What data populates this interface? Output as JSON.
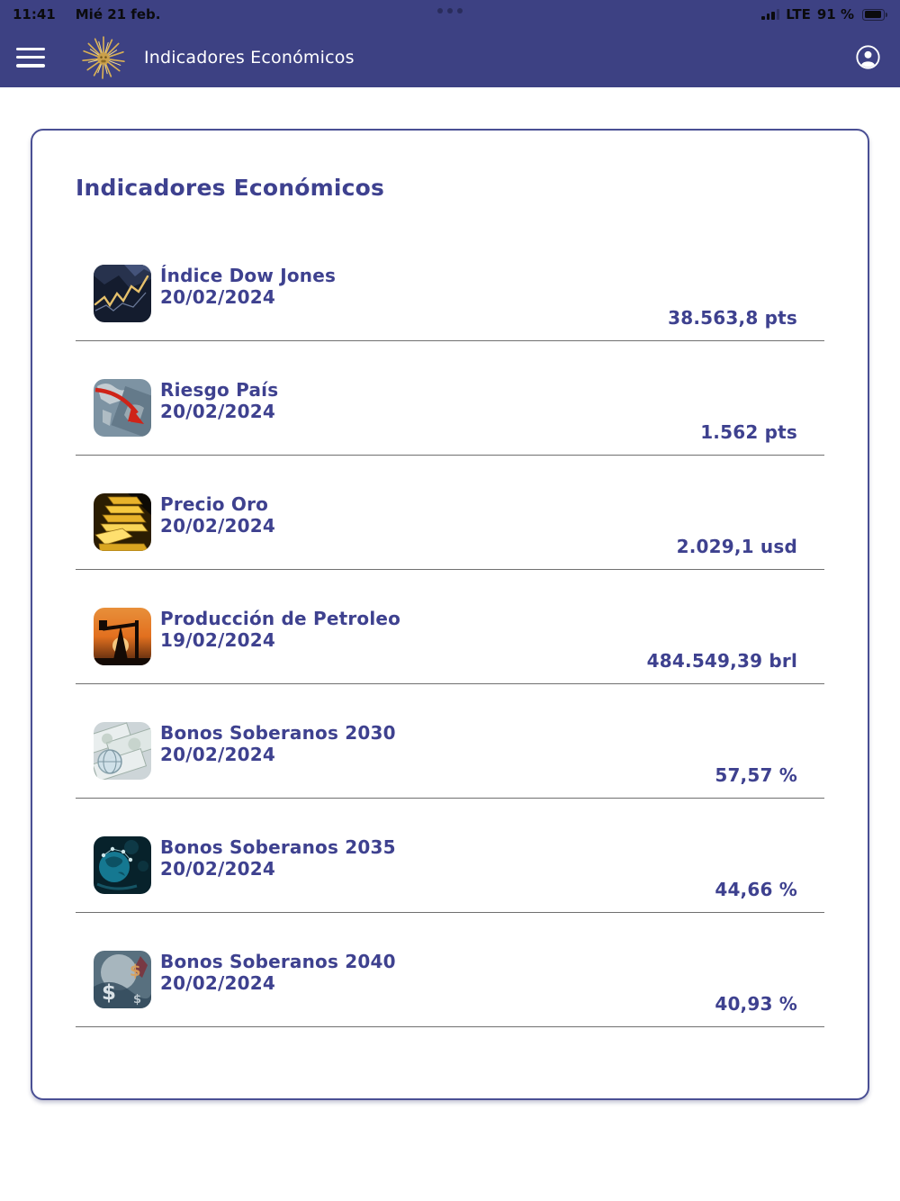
{
  "status_bar": {
    "time": "11:41",
    "date": "Mié 21 feb.",
    "network": "LTE",
    "battery_label": "91 %",
    "battery_percent": 91,
    "signal_bars_filled": 3
  },
  "header": {
    "title": "Indicadores Económicos",
    "logo": "golden-sun-mask-logo",
    "menu_icon": "hamburger-menu-icon",
    "account_icon": "account-icon"
  },
  "card": {
    "title": "Indicadores Económicos",
    "items": [
      {
        "name": "Índice Dow Jones",
        "date": "20/02/2024",
        "value": "38.563,8 pts",
        "thumb": "stock-chart"
      },
      {
        "name": "Riesgo País",
        "date": "20/02/2024",
        "value": "1.562 pts",
        "thumb": "world-map-arrow"
      },
      {
        "name": "Precio Oro",
        "date": "20/02/2024",
        "value": "2.029,1 usd",
        "thumb": "gold-bars"
      },
      {
        "name": "Producción de Petroleo",
        "date": "19/02/2024",
        "value": "484.549,39 brl",
        "thumb": "oil-pump"
      },
      {
        "name": "Bonos Soberanos 2030",
        "date": "20/02/2024",
        "value": "57,57 %",
        "thumb": "dollar-bills-globe"
      },
      {
        "name": "Bonos Soberanos 2035",
        "date": "20/02/2024",
        "value": "44,66 %",
        "thumb": "teal-network-globe"
      },
      {
        "name": "Bonos Soberanos 2040",
        "date": "20/02/2024",
        "value": "40,93 %",
        "thumb": "dollar-signs"
      }
    ]
  },
  "colors": {
    "chrome_background": "#3d4183",
    "accent_text": "#3e418f",
    "card_border": "#4a4f94",
    "divider": "#707070",
    "status_text": "#0b0b0d",
    "gold_logo": "#d9b054"
  }
}
